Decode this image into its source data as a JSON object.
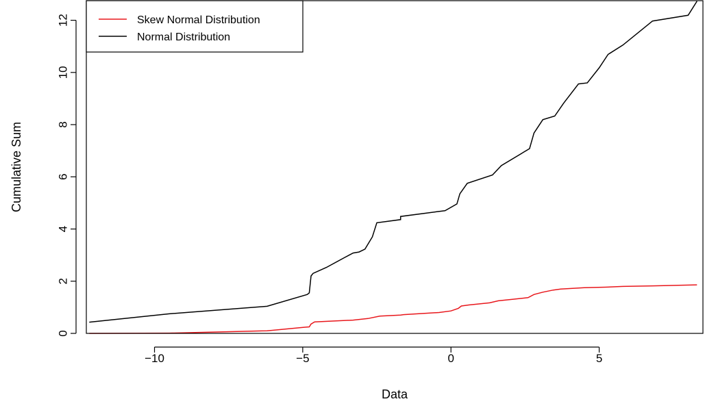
{
  "chart_data": {
    "type": "line",
    "title": "",
    "xlabel": "Data",
    "ylabel": "Cumulative Sum",
    "xlim": [
      -12.3,
      8.5
    ],
    "ylim": [
      0,
      12.75
    ],
    "x_ticks": [
      -10,
      -5,
      0,
      5
    ],
    "x_tick_labels": [
      "−10",
      "−5",
      "0",
      "5"
    ],
    "y_ticks": [
      0,
      2,
      4,
      6,
      8,
      10,
      12
    ],
    "y_tick_labels": [
      "0",
      "2",
      "4",
      "6",
      "8",
      "10",
      "12"
    ],
    "grid": false,
    "legend_position": "top-left",
    "series": [
      {
        "name": "Skew Normal Distribution",
        "color": "#e8161b",
        "points": [
          [
            -12.2,
            0.0
          ],
          [
            -9.5,
            0.01
          ],
          [
            -6.2,
            0.1
          ],
          [
            -4.9,
            0.24
          ],
          [
            -4.78,
            0.25
          ],
          [
            -4.72,
            0.36
          ],
          [
            -4.6,
            0.44
          ],
          [
            -3.3,
            0.51
          ],
          [
            -2.8,
            0.57
          ],
          [
            -2.4,
            0.66
          ],
          [
            -1.7,
            0.7
          ],
          [
            -1.6,
            0.72
          ],
          [
            -0.4,
            0.8
          ],
          [
            0.0,
            0.86
          ],
          [
            0.25,
            0.96
          ],
          [
            0.35,
            1.05
          ],
          [
            0.6,
            1.09
          ],
          [
            1.3,
            1.17
          ],
          [
            1.6,
            1.25
          ],
          [
            2.1,
            1.31
          ],
          [
            2.6,
            1.37
          ],
          [
            2.8,
            1.49
          ],
          [
            3.1,
            1.58
          ],
          [
            3.45,
            1.66
          ],
          [
            3.7,
            1.7
          ],
          [
            4.5,
            1.75
          ],
          [
            5.2,
            1.77
          ],
          [
            5.8,
            1.8
          ],
          [
            6.8,
            1.82
          ],
          [
            8.3,
            1.86
          ]
        ]
      },
      {
        "name": "Normal Distribution",
        "color": "#000000",
        "points": [
          [
            -12.2,
            0.43
          ],
          [
            -9.5,
            0.75
          ],
          [
            -6.2,
            1.04
          ],
          [
            -4.85,
            1.49
          ],
          [
            -4.78,
            1.55
          ],
          [
            -4.72,
            2.2
          ],
          [
            -4.65,
            2.3
          ],
          [
            -4.2,
            2.53
          ],
          [
            -3.6,
            2.9
          ],
          [
            -3.3,
            3.08
          ],
          [
            -3.1,
            3.12
          ],
          [
            -2.9,
            3.23
          ],
          [
            -2.65,
            3.7
          ],
          [
            -2.5,
            4.24
          ],
          [
            -1.7,
            4.36
          ],
          [
            -1.7,
            4.48
          ],
          [
            -0.5,
            4.66
          ],
          [
            -0.2,
            4.7
          ],
          [
            0.2,
            4.96
          ],
          [
            0.3,
            5.35
          ],
          [
            0.55,
            5.75
          ],
          [
            1.4,
            6.07
          ],
          [
            1.7,
            6.43
          ],
          [
            2.65,
            7.08
          ],
          [
            2.8,
            7.68
          ],
          [
            3.1,
            8.19
          ],
          [
            3.5,
            8.33
          ],
          [
            3.8,
            8.82
          ],
          [
            4.3,
            9.56
          ],
          [
            4.6,
            9.6
          ],
          [
            5.0,
            10.18
          ],
          [
            5.3,
            10.69
          ],
          [
            5.8,
            11.05
          ],
          [
            6.8,
            11.97
          ],
          [
            8.0,
            12.19
          ],
          [
            8.3,
            12.73
          ]
        ]
      }
    ]
  }
}
